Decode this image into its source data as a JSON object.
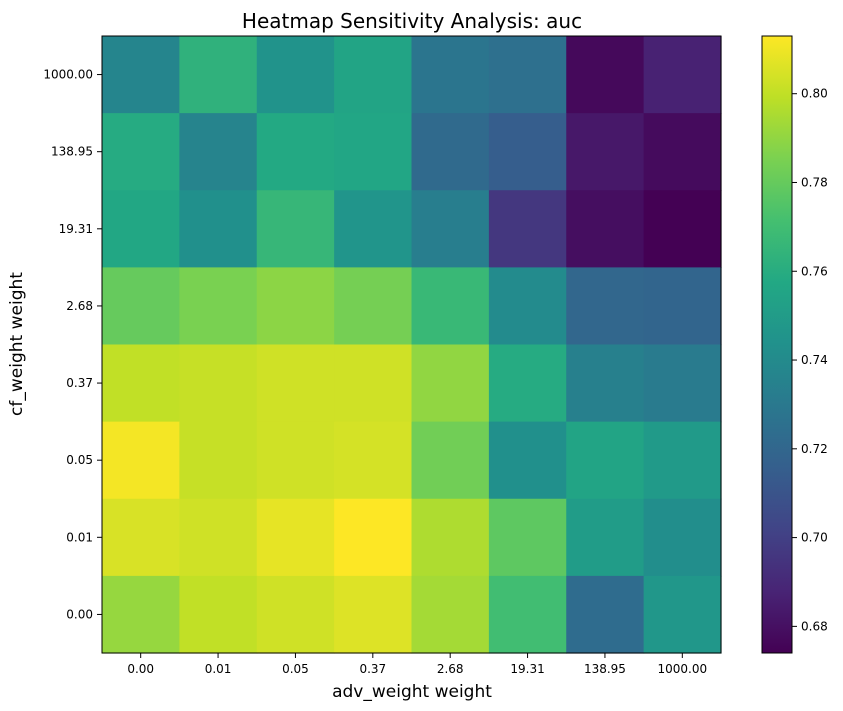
{
  "chart_data": {
    "type": "heatmap",
    "title": "Heatmap Sensitivity Analysis: auc",
    "xlabel": "adv_weight weight",
    "ylabel": "cf_weight weight",
    "x_categories": [
      "0.00",
      "0.01",
      "0.05",
      "0.37",
      "2.68",
      "19.31",
      "138.95",
      "1000.00"
    ],
    "y_categories": [
      "1000.00",
      "138.95",
      "19.31",
      "2.68",
      "0.37",
      "0.05",
      "0.01",
      "0.00"
    ],
    "values": [
      [
        0.737,
        0.763,
        0.745,
        0.755,
        0.728,
        0.725,
        0.677,
        0.687
      ],
      [
        0.759,
        0.736,
        0.758,
        0.756,
        0.722,
        0.715,
        0.683,
        0.678
      ],
      [
        0.757,
        0.743,
        0.766,
        0.746,
        0.733,
        0.696,
        0.679,
        0.674
      ],
      [
        0.78,
        0.785,
        0.789,
        0.784,
        0.767,
        0.74,
        0.72,
        0.719
      ],
      [
        0.8,
        0.801,
        0.803,
        0.803,
        0.79,
        0.759,
        0.734,
        0.731
      ],
      [
        0.811,
        0.801,
        0.803,
        0.804,
        0.783,
        0.743,
        0.755,
        0.749
      ],
      [
        0.805,
        0.803,
        0.808,
        0.813,
        0.796,
        0.778,
        0.75,
        0.742
      ],
      [
        0.791,
        0.8,
        0.803,
        0.806,
        0.794,
        0.77,
        0.723,
        0.747
      ]
    ],
    "colormap": "viridis",
    "colorbar": {
      "min": 0.674,
      "max": 0.813,
      "ticks": [
        0.68,
        0.7,
        0.72,
        0.74,
        0.76,
        0.78,
        0.8
      ],
      "tick_labels": [
        "0.68",
        "0.70",
        "0.72",
        "0.74",
        "0.76",
        "0.78",
        "0.80"
      ]
    }
  }
}
